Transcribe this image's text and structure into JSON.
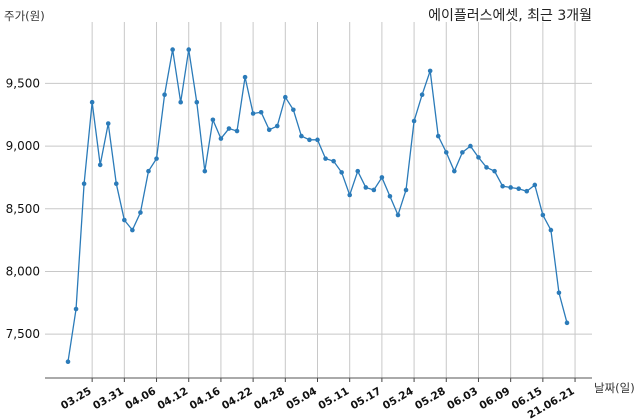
{
  "chart_data": {
    "type": "line",
    "title": "에이플러스에셋, 최근 3개월",
    "xlabel": "날짜(일)",
    "ylabel": "주가(원)",
    "ylim": [
      7150,
      9990
    ],
    "grid": true,
    "line_color": "#2b7bb9",
    "y_ticks": [
      7500,
      8000,
      8500,
      9000,
      9500
    ],
    "y_tick_labels": [
      "7,500",
      "8,000",
      "8,500",
      "9,000",
      "9,500"
    ],
    "x_tick_labels": [
      "03.25",
      "03.31",
      "04.06",
      "04.12",
      "04.16",
      "04.22",
      "04.28",
      "05.04",
      "05.11",
      "05.17",
      "05.24",
      "05.28",
      "06.03",
      "06.09",
      "06.15",
      "21.06.21"
    ],
    "x_tick_positions": [
      3,
      7,
      11,
      15,
      19,
      23,
      27,
      31,
      35,
      39,
      43,
      47,
      51,
      55,
      59,
      63
    ],
    "series": [
      {
        "values": [
          7280,
          7700,
          8700,
          9350,
          8850,
          9180,
          8700,
          8410,
          8330,
          8470,
          8800,
          8900,
          9410,
          9770,
          9350,
          9770,
          9350,
          8800,
          9210,
          9060,
          9140,
          9120,
          9550,
          9260,
          9270,
          9130,
          9160,
          9390,
          9290,
          9080,
          9050,
          9050,
          8900,
          8880,
          8790,
          8610,
          8800,
          8670,
          8650,
          8750,
          8600,
          8450,
          8650,
          9200,
          9410,
          9600,
          9080,
          8950,
          8800,
          8950,
          9000,
          8910,
          8830,
          8800,
          8680,
          8670,
          8660,
          8640,
          8690,
          8450,
          8330,
          7830,
          7590
        ]
      }
    ]
  }
}
